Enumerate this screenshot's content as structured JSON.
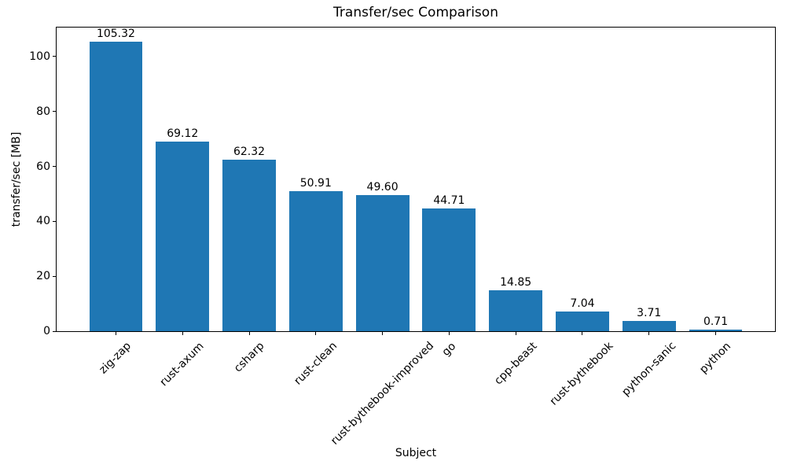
{
  "figure": {
    "background": "#ffffff"
  },
  "chart_data": {
    "type": "bar",
    "title": "Transfer/sec Comparison",
    "xlabel": "Subject",
    "ylabel": "transfer/sec [MB]",
    "categories": [
      "zig-zap",
      "rust-axum",
      "csharp",
      "rust-clean",
      "rust-bythebook-improved",
      "go",
      "cpp-beast",
      "rust-bythebook",
      "python-sanic",
      "python"
    ],
    "values": [
      105.32,
      69.12,
      62.32,
      50.91,
      49.6,
      44.71,
      14.85,
      7.04,
      3.71,
      0.71
    ],
    "bar_labels": [
      "105.32",
      "69.12",
      "62.32",
      "50.91",
      "49.60",
      "44.71",
      "14.85",
      "7.04",
      "3.71",
      "0.71"
    ],
    "yticks": [
      0,
      20,
      40,
      60,
      80,
      100
    ],
    "ylim": [
      0,
      110.59
    ],
    "grid": false,
    "legend": false,
    "bar_color": "#1f77b4",
    "axis_color": "#000000",
    "text_color": "#000000",
    "x_tick_label_rotation_deg": 45
  }
}
